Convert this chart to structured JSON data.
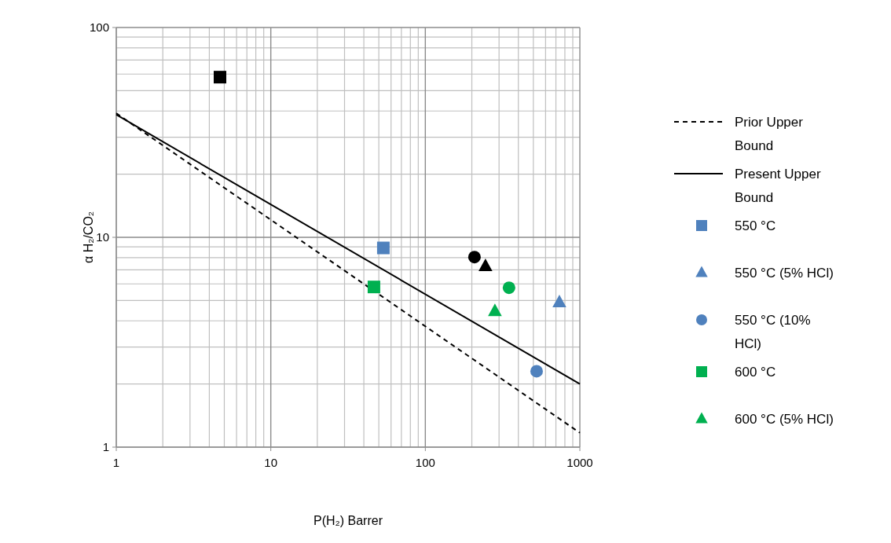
{
  "chart_data": {
    "type": "scatter",
    "xlabel": "P(H₂) Barrer",
    "ylabel": "α H₂/CO₂",
    "log": "xy",
    "grid": true,
    "legend": "right",
    "xlim": [
      1,
      1000
    ],
    "xticks": [
      1,
      10,
      100,
      1000
    ],
    "ylim": [
      1,
      100
    ],
    "yticks": [
      1,
      10,
      100
    ],
    "series": [
      {
        "name": "Prior Upper Bound",
        "type": "line",
        "color": "#000000",
        "line_style": "dashed",
        "x": [
          1,
          1000
        ],
        "values": [
          39,
          1.17
        ]
      },
      {
        "name": "Present Upper Bound",
        "type": "line",
        "color": "#000000",
        "line_style": "solid",
        "x": [
          1,
          1000
        ],
        "values": [
          38.4,
          2.0
        ]
      },
      {
        "name": "550 °C",
        "color": "#4f81bd",
        "marker": "square",
        "x": [
          53.5
        ],
        "values": [
          8.9
        ]
      },
      {
        "name": "550 °C (5% HCl)",
        "color": "#4f81bd",
        "marker": "triangle",
        "x": [
          737
        ],
        "values": [
          4.9
        ]
      },
      {
        "name": "550 °C (10% HCl)",
        "color": "#4f81bd",
        "marker": "circle",
        "x": [
          525
        ],
        "values": [
          2.3
        ]
      },
      {
        "name": "600 °C",
        "color": "#00b050",
        "marker": "square",
        "x": [
          46.5
        ],
        "values": [
          5.8
        ]
      },
      {
        "name": "600 °C (5% HCl)",
        "color": "#00b050",
        "marker": "triangle",
        "x": [
          282
        ],
        "values": [
          4.45
        ]
      },
      {
        "color": "#00b050",
        "marker": "circle",
        "x": [
          348
        ],
        "values": [
          5.75
        ]
      },
      {
        "color": "#000000",
        "marker": "square",
        "x": [
          4.69
        ],
        "values": [
          58
        ]
      },
      {
        "color": "#000000",
        "marker": "circle",
        "x": [
          208
        ],
        "values": [
          8.05
        ]
      },
      {
        "color": "#000000",
        "marker": "triangle",
        "x": [
          245
        ],
        "values": [
          7.3
        ]
      }
    ]
  }
}
